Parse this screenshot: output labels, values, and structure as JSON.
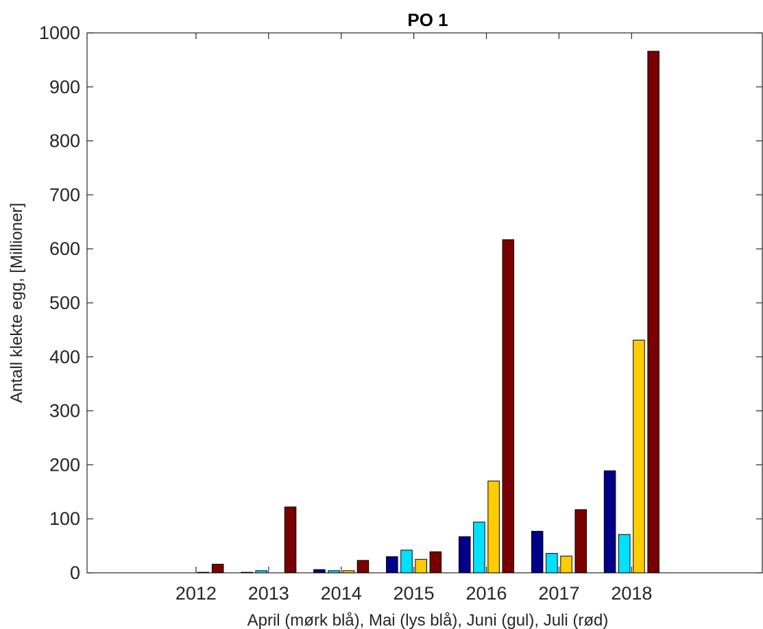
{
  "chart_data": {
    "type": "bar",
    "title": "PO 1",
    "xlabel": "April (mørk blå), Mai (lys blå), Juni (gul), Juli (rød)",
    "ylabel": "Antall klekte egg, [Millioner]",
    "categories": [
      "2012",
      "2013",
      "2014",
      "2015",
      "2016",
      "2017",
      "2018"
    ],
    "series": [
      {
        "values": [
          0,
          1,
          6,
          30,
          67,
          77,
          189
        ],
        "color": "#00008b"
      },
      {
        "values": [
          0,
          4,
          4,
          42,
          94,
          36,
          71
        ],
        "color": "#00e0ff"
      },
      {
        "values": [
          1,
          0,
          4,
          25,
          170,
          31,
          431
        ],
        "color": "#ffcc00"
      },
      {
        "values": [
          16,
          122,
          23,
          39,
          617,
          117,
          966
        ],
        "color": "#7a0000"
      }
    ],
    "ylim": [
      0,
      1000
    ],
    "yticks": [
      0,
      100,
      200,
      300,
      400,
      500,
      600,
      700,
      800,
      900,
      1000
    ],
    "xlim": [
      2010.5,
      2019.8
    ],
    "grid": false,
    "legend": "none"
  }
}
